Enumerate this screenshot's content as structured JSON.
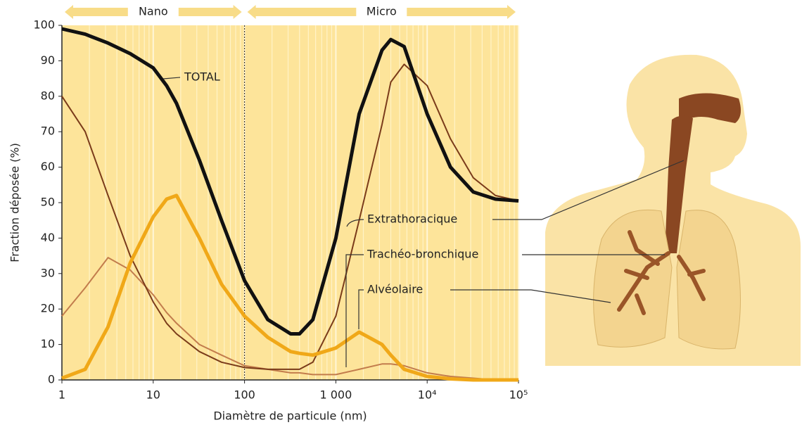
{
  "chart_data": {
    "type": "line",
    "x_label": "Diamètre de particule (nm)",
    "y_label": "Fraction déposée (%)",
    "x_log": true,
    "grid": true,
    "bands": [
      {
        "label": "Nano",
        "from": 1,
        "to": 100
      },
      {
        "label": "Micro",
        "from": 100,
        "to": 100000
      }
    ],
    "vline": 100,
    "xlim": [
      1,
      100000
    ],
    "ylim": [
      0,
      100
    ],
    "xticks": [
      1,
      10,
      100,
      {
        "value": 1000,
        "label": "1 000"
      },
      {
        "value": 10000,
        "label": "10⁴"
      },
      {
        "value": 100000,
        "label": "10⁵"
      }
    ],
    "xminor_ticks": [
      2,
      3,
      4,
      5,
      6,
      7,
      8,
      9,
      20,
      30,
      40,
      50,
      60,
      70,
      80,
      90,
      200,
      300,
      400,
      500,
      600,
      700,
      800,
      900,
      2000,
      3000,
      4000,
      5000,
      6000,
      7000,
      8000,
      9000,
      20000,
      30000,
      40000,
      50000,
      60000,
      70000,
      80000,
      90000
    ],
    "yticks": [
      0,
      10,
      20,
      30,
      40,
      50,
      60,
      70,
      80,
      90,
      100
    ],
    "x": [
      1,
      1.8,
      3.2,
      5.6,
      10,
      14,
      18,
      32,
      56,
      100,
      180,
      320,
      400,
      560,
      1000,
      1800,
      3200,
      4000,
      5600,
      10000,
      18000,
      32000,
      56000,
      100000
    ],
    "series": [
      {
        "name": "TOTAL",
        "color": "#111111",
        "values": [
          99,
          97.5,
          95,
          92,
          88,
          83,
          78,
          62,
          45,
          28,
          17,
          13,
          13,
          17,
          40,
          75,
          93,
          96,
          94,
          75,
          60,
          53,
          51,
          50.5
        ]
      },
      {
        "name": "Extrathoracique",
        "color": "#7a3b1a",
        "values": [
          80,
          70,
          52,
          35,
          22,
          16,
          13,
          8,
          5,
          3.5,
          3,
          3,
          3,
          5,
          18,
          45,
          72,
          84,
          89,
          83,
          68,
          57,
          52,
          50.5
        ]
      },
      {
        "name": "Trachéo-bronchique",
        "color": "#c27c4c",
        "values": [
          18,
          26,
          34.5,
          31,
          24,
          19,
          16,
          10,
          7,
          4,
          3,
          2,
          2,
          1.5,
          1.5,
          3,
          4.5,
          4.5,
          4,
          2,
          1,
          0.5,
          0,
          0
        ]
      },
      {
        "name": "Alvéolaire",
        "color": "#f0a818",
        "values": [
          0.5,
          3,
          15,
          33,
          46,
          51,
          52,
          40,
          27,
          18,
          12,
          8,
          7.5,
          7,
          9,
          13.5,
          10,
          7,
          3,
          1,
          0.3,
          0,
          0,
          0
        ]
      }
    ]
  }
}
